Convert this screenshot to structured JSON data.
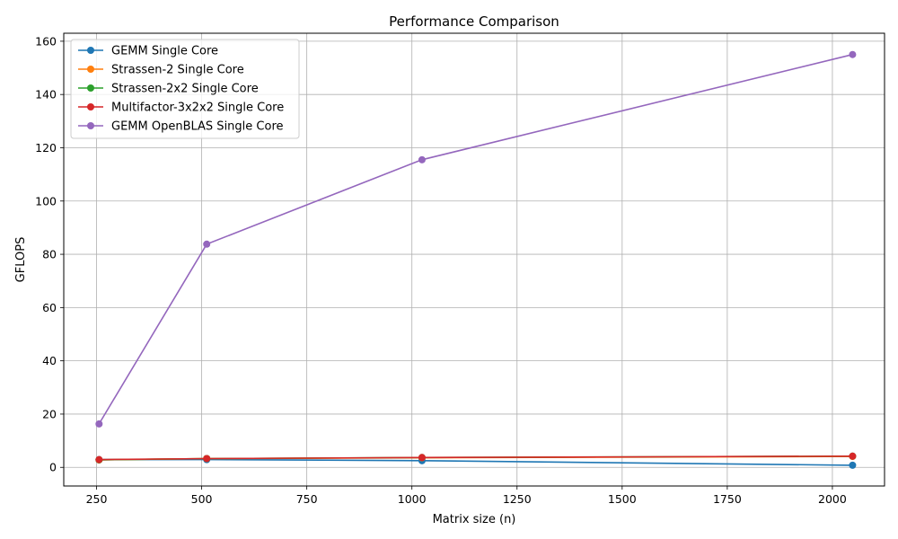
{
  "chart_data": {
    "type": "line",
    "title": "Performance Comparison",
    "xlabel": "Matrix size (n)",
    "ylabel": "GFLOPS",
    "xlim": [
      172,
      2124
    ],
    "ylim": [
      -7,
      163
    ],
    "xticks": [
      250,
      500,
      750,
      1000,
      1250,
      1500,
      1750,
      2000
    ],
    "yticks": [
      0,
      20,
      40,
      60,
      80,
      100,
      120,
      140,
      160
    ],
    "grid": true,
    "legend_position": "upper-left",
    "x": [
      256,
      512,
      1024,
      2048
    ],
    "series": [
      {
        "name": "GEMM Single Core",
        "color": "#1f77b4",
        "values": [
          2.9,
          2.9,
          2.5,
          0.8
        ]
      },
      {
        "name": "Strassen-2 Single Core",
        "color": "#ff7f0e",
        "values": [
          2.8,
          3.3,
          3.6,
          4.1
        ]
      },
      {
        "name": "Strassen-2x2 Single Core",
        "color": "#2ca02c",
        "values": [
          2.8,
          3.3,
          3.7,
          4.2
        ]
      },
      {
        "name": "Multifactor-3x2x2 Single Core",
        "color": "#d62728",
        "values": [
          2.9,
          3.3,
          3.7,
          4.2
        ]
      },
      {
        "name": "GEMM OpenBLAS Single Core",
        "color": "#9467bd",
        "values": [
          16.3,
          83.8,
          115.5,
          155.0
        ]
      }
    ]
  }
}
